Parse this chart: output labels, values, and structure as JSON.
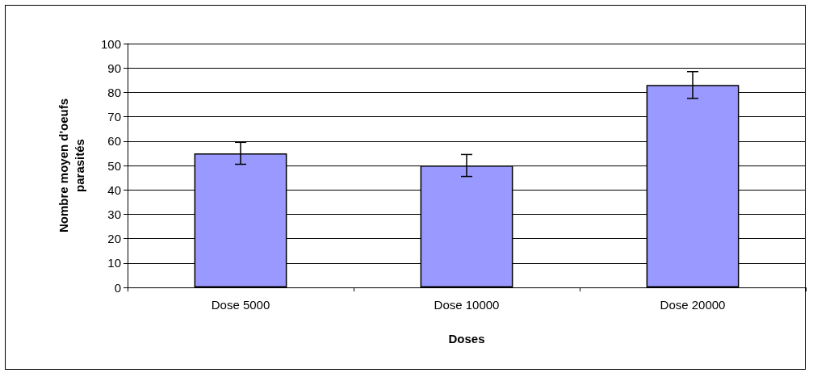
{
  "chart_data": {
    "type": "bar",
    "xlabel": "Doses",
    "ylabel": "Nombre moyen d'oeufs\nparasités",
    "categories": [
      "Dose 5000",
      "Dose 10000",
      "Dose 20000"
    ],
    "values": [
      55,
      50,
      83
    ],
    "errors": [
      4.5,
      4.5,
      5.5
    ],
    "color": "#9999ff",
    "ylim": [
      0,
      100
    ],
    "yticks": [
      0,
      10,
      20,
      30,
      40,
      50,
      60,
      70,
      80,
      90,
      100
    ],
    "grid": "y"
  }
}
